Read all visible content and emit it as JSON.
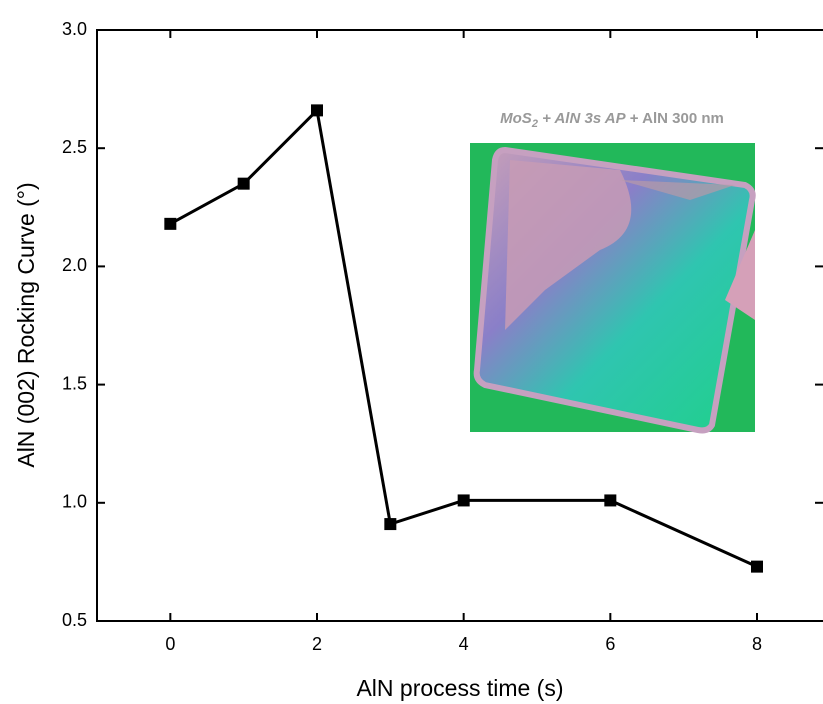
{
  "chart_data": {
    "type": "line",
    "x_label": "AlN process time (s)",
    "y_label": "AlN (002) Rocking Curve (°)",
    "inset_title_parts": [
      "MoS",
      "2",
      " + AlN 3s AP",
      " + AlN 300 nm"
    ],
    "x": [
      0,
      1,
      2,
      3,
      4,
      6,
      8
    ],
    "series": [
      {
        "name": "AlN (002) Rocking Curve",
        "color": "#000000",
        "values": [
          2.18,
          2.35,
          2.66,
          0.91,
          1.01,
          1.01,
          0.73
        ]
      }
    ],
    "xlim": [
      -1,
      8.9
    ],
    "xticks": [
      0,
      2,
      4,
      6,
      8
    ],
    "ylim": [
      0.5,
      3.0
    ],
    "yticks": [
      0.5,
      {
        "value": 1,
        "label": "1.0"
      },
      1.5,
      {
        "value": 2,
        "label": "2.0"
      },
      2.5,
      {
        "value": 3,
        "label": "3.0"
      }
    ]
  }
}
